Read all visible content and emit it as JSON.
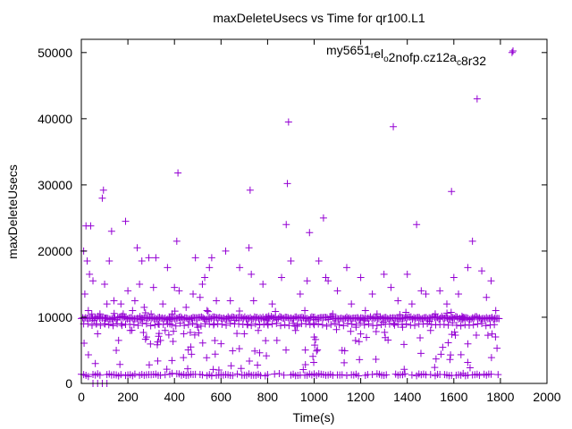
{
  "chart_data": {
    "type": "scatter",
    "title": "maxDeleteUsecs vs Time for qr100.L1",
    "xlabel": "Time(s)",
    "ylabel": "maxDeleteUsecs",
    "xlim": [
      0,
      2000
    ],
    "ylim": [
      0,
      52000
    ],
    "x_ticks": [
      0,
      200,
      400,
      600,
      800,
      1000,
      1200,
      1400,
      1600,
      1800,
      2000
    ],
    "x_tick_labels": [
      "0",
      "200",
      "400",
      "600",
      "800",
      "1000",
      "1200",
      "1400",
      "1600",
      "1800",
      "2000"
    ],
    "y_ticks": [
      0,
      10000,
      20000,
      30000,
      40000,
      50000
    ],
    "y_tick_labels": [
      "0",
      "10000",
      "20000",
      "30000",
      "40000",
      "50000"
    ],
    "grid": false,
    "legend_position": "top-right",
    "marker": "plus",
    "colors": {
      "series": "#9400d3",
      "axis": "#000000"
    },
    "series": [
      {
        "name_parts": [
          {
            "text": "my5651",
            "sub": false
          },
          {
            "text": "r",
            "sub": true
          },
          {
            "text": "el",
            "sub": false
          },
          {
            "text": "o",
            "sub": true
          },
          {
            "text": "2nofp.cz12a",
            "sub": false
          },
          {
            "text": "c",
            "sub": true
          },
          {
            "text": "8r32",
            "sub": false
          }
        ],
        "points": [
          [
            10,
            20000
          ],
          [
            15,
            13500
          ],
          [
            20,
            23800
          ],
          [
            25,
            18500
          ],
          [
            30,
            11000
          ],
          [
            35,
            16500
          ],
          [
            40,
            23800
          ],
          [
            45,
            10500
          ],
          [
            50,
            15500
          ],
          [
            55,
            9500
          ],
          [
            60,
            3000
          ],
          [
            65,
            9000
          ],
          [
            70,
            7500
          ],
          [
            80,
            10500
          ],
          [
            90,
            28000
          ],
          [
            95,
            29200
          ],
          [
            100,
            15000
          ],
          [
            110,
            12000
          ],
          [
            120,
            18500
          ],
          [
            130,
            23000
          ],
          [
            140,
            12500
          ],
          [
            150,
            5000
          ],
          [
            160,
            6500
          ],
          [
            170,
            12000
          ],
          [
            180,
            10500
          ],
          [
            190,
            24500
          ],
          [
            200,
            14000
          ],
          [
            210,
            8000
          ],
          [
            220,
            11000
          ],
          [
            230,
            12500
          ],
          [
            240,
            20500
          ],
          [
            250,
            15000
          ],
          [
            260,
            18500
          ],
          [
            270,
            11500
          ],
          [
            280,
            7000
          ],
          [
            290,
            19000
          ],
          [
            300,
            10500
          ],
          [
            310,
            14500
          ],
          [
            320,
            19000
          ],
          [
            330,
            9000
          ],
          [
            340,
            6500
          ],
          [
            350,
            12000
          ],
          [
            360,
            8000
          ],
          [
            370,
            17500
          ],
          [
            380,
            9000
          ],
          [
            390,
            10500
          ],
          [
            400,
            14500
          ],
          [
            410,
            21500
          ],
          [
            415,
            31800
          ],
          [
            420,
            14000
          ],
          [
            440,
            7500
          ],
          [
            450,
            11500
          ],
          [
            470,
            5500
          ],
          [
            480,
            13500
          ],
          [
            490,
            19000
          ],
          [
            500,
            8500
          ],
          [
            510,
            13000
          ],
          [
            520,
            15000
          ],
          [
            530,
            16000
          ],
          [
            540,
            11000
          ],
          [
            550,
            17500
          ],
          [
            560,
            19000
          ],
          [
            570,
            9000
          ],
          [
            580,
            12500
          ],
          [
            600,
            6000
          ],
          [
            620,
            20000
          ],
          [
            640,
            12500
          ],
          [
            660,
            9500
          ],
          [
            680,
            17500
          ],
          [
            700,
            7500
          ],
          [
            720,
            20500
          ],
          [
            725,
            29200
          ],
          [
            730,
            16500
          ],
          [
            740,
            12500
          ],
          [
            760,
            8000
          ],
          [
            780,
            15000
          ],
          [
            800,
            9000
          ],
          [
            820,
            12000
          ],
          [
            840,
            6500
          ],
          [
            860,
            16000
          ],
          [
            880,
            24000
          ],
          [
            885,
            30200
          ],
          [
            890,
            39500
          ],
          [
            900,
            18500
          ],
          [
            920,
            8000
          ],
          [
            940,
            13500
          ],
          [
            960,
            11000
          ],
          [
            970,
            15500
          ],
          [
            980,
            22800
          ],
          [
            1000,
            7000
          ],
          [
            1020,
            18500
          ],
          [
            1040,
            25000
          ],
          [
            1050,
            16000
          ],
          [
            1060,
            15500
          ],
          [
            1080,
            10500
          ],
          [
            1100,
            14000
          ],
          [
            1120,
            5000
          ],
          [
            1140,
            17500
          ],
          [
            1160,
            12000
          ],
          [
            1180,
            8500
          ],
          [
            1200,
            16000
          ],
          [
            1220,
            11000
          ],
          [
            1250,
            13500
          ],
          [
            1270,
            10500
          ],
          [
            1300,
            16500
          ],
          [
            1330,
            14500
          ],
          [
            1340,
            38800
          ],
          [
            1360,
            12500
          ],
          [
            1380,
            8500
          ],
          [
            1400,
            16500
          ],
          [
            1420,
            12000
          ],
          [
            1440,
            24000
          ],
          [
            1460,
            14000
          ],
          [
            1480,
            13500
          ],
          [
            1500,
            8000
          ],
          [
            1520,
            10500
          ],
          [
            1540,
            14000
          ],
          [
            1570,
            12000
          ],
          [
            1590,
            29000
          ],
          [
            1600,
            16000
          ],
          [
            1620,
            13500
          ],
          [
            1640,
            10000
          ],
          [
            1660,
            17500
          ],
          [
            1680,
            21500
          ],
          [
            1700,
            43000
          ],
          [
            1720,
            17000
          ],
          [
            1740,
            13000
          ],
          [
            1760,
            15500
          ],
          [
            1780,
            11000
          ],
          [
            1850,
            50000
          ]
        ]
      }
    ]
  }
}
